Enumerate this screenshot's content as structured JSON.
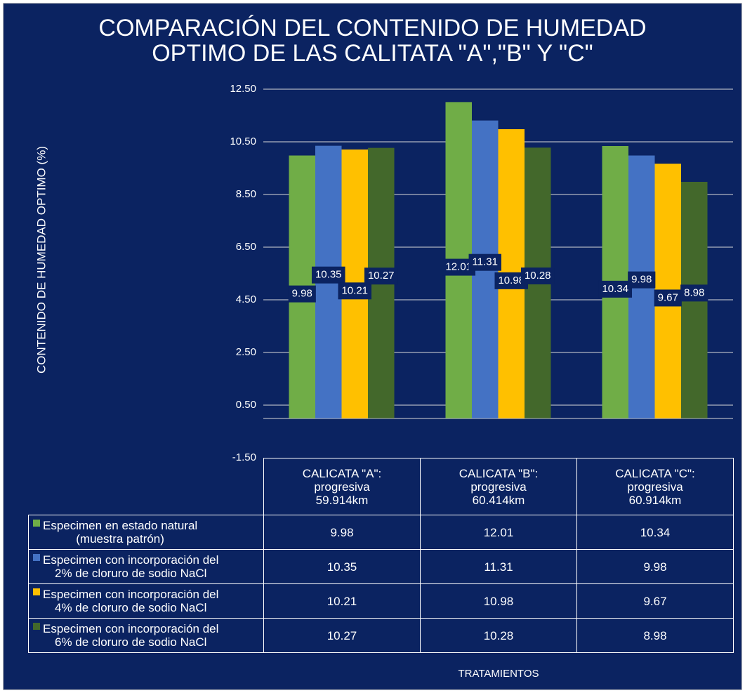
{
  "chart_data": {
    "type": "bar",
    "title": "COMPARACIÓN DEL CONTENIDO DE HUMEDAD\nOPTIMO DE LAS CALITATA \"A\",\"B\" Y \"C\"",
    "y_label": "CONTENIDO DE HUMEDAD OPTIMO (%)",
    "x_label": "TRATAMIENTOS",
    "categories": [
      "CALICATA \"A\":\nprogresiva\n59.914km",
      "CALICATA \"B\":\nprogresiva\n60.414km",
      "CALICATA \"C\":\nprogresiva\n60.914km"
    ],
    "series": [
      {
        "name": "Especimen en estado natural\n(muestra patrón)",
        "color": "#70ad47",
        "values": [
          9.98,
          12.01,
          10.34
        ]
      },
      {
        "name": "Especimen con incorporación del\n2% de cloruro de sodio NaCl",
        "color": "#4472c4",
        "values": [
          10.35,
          11.31,
          9.98
        ]
      },
      {
        "name": "Especimen con incorporación del\n4% de cloruro de sodio NaCl",
        "color": "#ffc000",
        "values": [
          10.21,
          10.98,
          9.67
        ]
      },
      {
        "name": "Especimen con incorporación del\n6% de cloruro de sodio NaCl",
        "color": "#43682b",
        "values": [
          10.27,
          10.28,
          8.98
        ]
      }
    ],
    "ylim": [
      -1.5,
      12.5
    ],
    "yticks": [
      {
        "value": -1.5,
        "label": "-1.50"
      },
      {
        "value": 0.5,
        "label": "0.50"
      },
      {
        "value": 2.5,
        "label": "2.50"
      },
      {
        "value": 4.5,
        "label": "4.50"
      },
      {
        "value": 6.5,
        "label": "6.50"
      },
      {
        "value": 8.5,
        "label": "8.50"
      },
      {
        "value": 10.5,
        "label": "10.50"
      },
      {
        "value": 12.5,
        "label": "12.50"
      }
    ],
    "grid": true,
    "data_table": true
  }
}
